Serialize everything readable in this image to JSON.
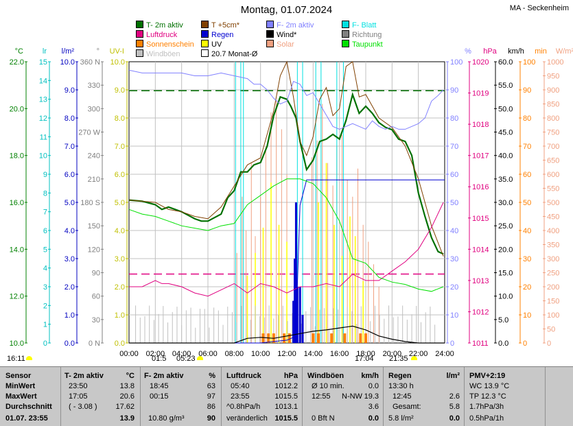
{
  "title": "Montag, 01.07.2024",
  "station": "MA - Seckenheim",
  "legend": [
    {
      "label": "T- 2m aktiv",
      "color": "#007000"
    },
    {
      "label": "T +5cm*",
      "color": "#804000"
    },
    {
      "label": "F- 2m aktiv",
      "color": "#8080ff"
    },
    {
      "label": "F- Blatt",
      "color": "#00e0e0"
    },
    {
      "label": "Luftdruck",
      "color": "#e00080"
    },
    {
      "label": "Regen",
      "color": "#0000d0"
    },
    {
      "label": "Wind*",
      "color": "#000000"
    },
    {
      "label": "Richtung",
      "color": "#808080"
    },
    {
      "label": "Sonnenschein",
      "color": "#ff8000"
    },
    {
      "label": "UV",
      "color": "#ffff00"
    },
    {
      "label": "Solar",
      "color": "#f0a080"
    },
    {
      "label": "Taupunkt",
      "color": "#00e000"
    },
    {
      "label": "Windböen",
      "color": "#c0c0c0"
    },
    {
      "label": "20.7 Monat-Ø",
      "color": "#ffffff"
    }
  ],
  "axes": {
    "temp": {
      "unit": "°C",
      "color": "#008000",
      "ticks": [
        "22.0",
        "20.0",
        "18.0",
        "16.0",
        "14.0",
        "12.0",
        "10.0"
      ]
    },
    "lr": {
      "unit": "lr",
      "color": "#00c0c0",
      "ticks": [
        "15",
        "14",
        "13",
        "12",
        "11",
        "10",
        "9",
        "8",
        "7",
        "6",
        "5",
        "4",
        "3",
        "2",
        "1",
        "0"
      ]
    },
    "rain": {
      "unit": "l/m²",
      "color": "#0000c0",
      "ticks": [
        "10.0",
        "9.0",
        "8.0",
        "7.0",
        "6.0",
        "5.0",
        "4.0",
        "3.0",
        "2.0",
        "1.0",
        "0.0"
      ]
    },
    "dir": {
      "unit": "°",
      "color": "#808080",
      "ticks": [
        "360 N",
        "330",
        "300",
        "270 W",
        "240",
        "210",
        "180 S",
        "150",
        "120",
        "90",
        "60",
        "30",
        "0 N"
      ]
    },
    "uv": {
      "unit": "UV-I",
      "color": "#c0c000",
      "ticks": [
        "10.0",
        "9.0",
        "8.0",
        "7.0",
        "6.0",
        "5.0",
        "4.0",
        "3.0",
        "2.0",
        "1.0",
        "0.0"
      ]
    },
    "hum": {
      "unit": "%",
      "color": "#8080ff",
      "ticks": [
        "100",
        "90",
        "80",
        "70",
        "60",
        "50",
        "40",
        "30",
        "20",
        "10",
        "0"
      ]
    },
    "hpa": {
      "unit": "hPa",
      "color": "#e00080",
      "ticks": [
        "1020",
        "1019",
        "1018",
        "1017",
        "1016",
        "1015",
        "1014",
        "1013",
        "1012",
        "1011"
      ]
    },
    "kmh": {
      "unit": "km/h",
      "color": "#000000",
      "ticks": [
        "60.0",
        "55.0",
        "50.0",
        "45.0",
        "40.0",
        "35.0",
        "30.0",
        "25.0",
        "20.0",
        "15.0",
        "10.0",
        "5.0",
        "0.0"
      ]
    },
    "min": {
      "unit": "min",
      "color": "#ff8000",
      "ticks": [
        "100",
        "90",
        "80",
        "70",
        "60",
        "50",
        "40",
        "30",
        "20",
        "10",
        "0"
      ]
    },
    "wm2": {
      "unit": "W/m²",
      "color": "#f0a080",
      "ticks": [
        "1000",
        "950",
        "900",
        "850",
        "800",
        "750",
        "700",
        "650",
        "600",
        "550",
        "500",
        "450",
        "400",
        "350",
        "300",
        "250",
        "200",
        "150",
        "100",
        "50",
        "0"
      ]
    },
    "x": {
      "ticks": [
        "00:00",
        "02:00",
        "04:00",
        "06:00",
        "08:00",
        "10:00",
        "12:00",
        "14:00",
        "16:00",
        "18:00",
        "20:00",
        "22:00",
        "24:00"
      ]
    }
  },
  "chart_data": {
    "type": "line",
    "title": "Montag, 01.07.2024",
    "x_unit": "h",
    "xlim": [
      0,
      24
    ],
    "series": [
      {
        "name": "T- 2m aktiv",
        "unit": "°C",
        "ylim": [
          10,
          22
        ],
        "x": [
          0,
          1,
          2,
          2.5,
          3,
          4,
          5,
          5.5,
          6,
          7,
          7.5,
          8,
          8.5,
          9,
          9.5,
          10,
          10.5,
          11,
          11.5,
          12,
          12.3,
          12.7,
          13,
          13.5,
          14,
          14.5,
          15,
          15.5,
          16,
          16.5,
          17,
          17.5,
          18,
          18.5,
          19,
          19.5,
          20,
          20.5,
          21,
          21.5,
          22,
          22.5,
          23,
          23.5,
          23.9
        ],
        "y": [
          16.1,
          16.05,
          15.9,
          15.7,
          15.8,
          15.6,
          15.3,
          15.2,
          15.2,
          15.5,
          16.2,
          16.5,
          17.3,
          17.3,
          17.6,
          17.7,
          18.4,
          19.7,
          20.5,
          20.4,
          20.1,
          19.6,
          18.6,
          17.4,
          17.8,
          18.6,
          18.7,
          18.9,
          18.7,
          19.5,
          20.6,
          19.8,
          20.1,
          19.8,
          19.4,
          19.2,
          19.1,
          18.7,
          18.6,
          18.0,
          16.4,
          15.4,
          14.5,
          13.9,
          13.8
        ]
      },
      {
        "name": "T +5cm*",
        "unit": "°C",
        "ylim": [
          10,
          22
        ],
        "x": [
          0,
          2,
          3,
          4,
          5,
          6,
          7,
          8,
          9,
          10,
          11,
          11.5,
          12,
          12.5,
          13,
          13.5,
          14,
          14.5,
          15,
          15.5,
          16,
          16.5,
          17,
          17.5,
          18,
          19,
          20,
          21,
          22,
          23,
          23.9
        ],
        "y": [
          16.1,
          16.0,
          15.7,
          15.6,
          15.4,
          15.3,
          15.8,
          16.7,
          17.6,
          17.9,
          19.9,
          21.4,
          22.0,
          20.5,
          18.6,
          18.0,
          18.8,
          20.4,
          20.9,
          19.7,
          20.0,
          21.8,
          22.0,
          20.5,
          20.6,
          19.6,
          19.2,
          18.4,
          17.0,
          15.0,
          13.7
        ]
      },
      {
        "name": "F- 2m aktiv",
        "unit": "%",
        "ylim": [
          0,
          100
        ],
        "x": [
          0,
          1,
          2,
          3,
          4,
          5,
          6,
          7,
          8,
          9,
          9.5,
          10,
          10.5,
          11,
          11.5,
          12,
          12.5,
          13,
          13.5,
          14,
          14.5,
          15,
          15.5,
          16,
          16.5,
          17,
          17.5,
          18,
          18.5,
          19,
          19.5,
          20,
          20.5,
          21,
          21.5,
          22,
          22.5,
          23,
          23.5,
          23.9
        ],
        "y": [
          97,
          96,
          96,
          96,
          96,
          95,
          95,
          96,
          95,
          94,
          92,
          92,
          90,
          87,
          85,
          86,
          93,
          92,
          88,
          89,
          85,
          81,
          77,
          76,
          77,
          78,
          77,
          76,
          79,
          77,
          76,
          77,
          76,
          76,
          77,
          78,
          80,
          86,
          88,
          90
        ]
      },
      {
        "name": "Luftdruck",
        "unit": "hPa",
        "ylim": [
          1011,
          1020
        ],
        "x": [
          0,
          1,
          2,
          2.5,
          3,
          4,
          5,
          6,
          7,
          8,
          9,
          10,
          11,
          12,
          13,
          14,
          15,
          16,
          17,
          18,
          19,
          20,
          21,
          22,
          23,
          23.9
        ],
        "y": [
          1012.8,
          1012.8,
          1013.0,
          1012.9,
          1012.9,
          1012.8,
          1012.6,
          1012.5,
          1012.7,
          1012.9,
          1012.6,
          1012.9,
          1012.8,
          1012.6,
          1012.8,
          1012.8,
          1012.9,
          1012.8,
          1013.2,
          1013.0,
          1013.0,
          1013.3,
          1013.6,
          1014.0,
          1014.7,
          1015.5
        ]
      },
      {
        "name": "Regen",
        "unit": "l/m²",
        "ylim": [
          0,
          10
        ],
        "x": [
          0,
          8.5,
          10,
          11,
          12,
          12.5,
          12.8,
          13,
          13.5,
          14,
          18,
          24
        ],
        "y": [
          0,
          0,
          0,
          0.05,
          0.1,
          0.2,
          2.0,
          4.9,
          5.8,
          5.8,
          5.8,
          5.8
        ]
      },
      {
        "name": "Taupunkt",
        "unit": "°C",
        "ylim": [
          10,
          22
        ],
        "x": [
          0,
          1,
          2,
          3,
          4,
          5,
          6,
          7,
          8,
          9,
          10,
          11,
          12,
          13,
          14,
          15,
          16,
          17,
          18,
          19,
          20,
          21,
          22,
          23,
          23.9
        ],
        "y": [
          15.7,
          15.5,
          15.4,
          15.2,
          15.0,
          14.9,
          14.8,
          15.0,
          15.1,
          15.9,
          16.3,
          16.7,
          17.0,
          17.0,
          16.8,
          16.2,
          15.2,
          13.6,
          13.4,
          12.8,
          12.6,
          12.5,
          12.3,
          12.2,
          12.4
        ]
      },
      {
        "name": "Wind*",
        "unit": "km/h",
        "ylim": [
          0,
          60
        ],
        "x": [
          0,
          8,
          9,
          10,
          11,
          12,
          13,
          14,
          15,
          16,
          17,
          18,
          19,
          20,
          21,
          22,
          24
        ],
        "y": [
          0,
          0,
          1.0,
          1.2,
          1.0,
          1.5,
          2.0,
          2.5,
          2.8,
          3.2,
          3.6,
          2.8,
          1.5,
          0.8,
          0.3,
          0,
          0
        ]
      },
      {
        "name": "20.7 Monat-Ø",
        "unit": "°C",
        "ylim": [
          10,
          22
        ],
        "x": [
          0,
          24
        ],
        "y": [
          20.7,
          20.7
        ]
      }
    ],
    "sunrise": "05:23",
    "sunset": "21:35",
    "moonrise": "01:5",
    "moonset": "17:04"
  },
  "footer": {
    "time": "16:11",
    "sun_left": "01:5",
    "sunrise": "05:23",
    "sunset_arrow": "17:04",
    "sunset": "21:35"
  },
  "table": {
    "labels": {
      "h": "Sensor",
      "r1": "MinWert",
      "r2": "MaxWert",
      "r3": "Durchschnitt",
      "r4": "01.07. 23:55"
    },
    "t": {
      "h1": "T- 2m aktiv",
      "h2": "°C",
      "r1a": "23:50",
      "r1b": "13.8",
      "r2a": "17:05",
      "r2b": "20.6",
      "r3a": "( - 3.08 )",
      "r3b": "17.62",
      "r4": "13.9"
    },
    "f": {
      "h1": "F- 2m aktiv",
      "h2": "%",
      "r1a": "18:45",
      "r1b": "63",
      "r2a": "00:15",
      "r2b": "97",
      "r3b": "86",
      "r4a": "10.80 g/m³",
      "r4": "90"
    },
    "p": {
      "h1": "Luftdruck",
      "h2": "hPa",
      "r1a": "05:40",
      "r1b": "1012.2",
      "r2a": "23:55",
      "r2b": "1015.5",
      "r3a": "^0.8hPa/h",
      "r3b": "1013.1",
      "r4a": "veränderlich",
      "r4": "1015.5"
    },
    "w": {
      "h1": "Windböen",
      "h2": "km/h",
      "r1a": "Ø 10 min.",
      "r1b": "0.0",
      "r2a": "12:55",
      "r2m": "N-NW",
      "r2b": "19.3",
      "r3b": "3.6",
      "r4a": "0 Bft N",
      "r4": "0.0"
    },
    "r": {
      "h1": "Regen",
      "h2": "l/m²",
      "r1a": "13:30 h",
      "r2a": "12:45",
      "r2b": "2.6",
      "r3a": "Gesamt:",
      "r3b": "5.8",
      "r4a": "5.8 l/m²",
      "r4": "0.0"
    },
    "x": {
      "h1": "PMV+2:19",
      "r1": "WC 13.9 °C",
      "r2": "TP 12.3 °C",
      "r3": "1.7hPa/3h",
      "r4": "0.5hPa/1h"
    }
  }
}
